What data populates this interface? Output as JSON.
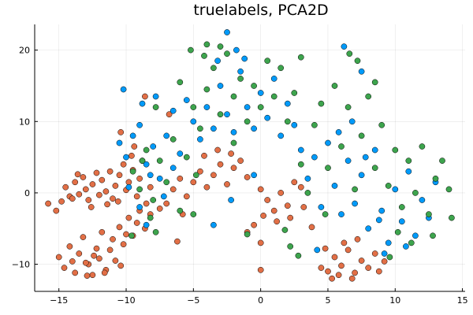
{
  "chart_data": {
    "type": "scatter",
    "title": "truelabels, PCA2D",
    "xlabel": "",
    "ylabel": "",
    "xlim": [
      -16.8,
      15.2
    ],
    "ylim": [
      -13.8,
      23.6
    ],
    "xticks": [
      -15,
      -10,
      -5,
      0,
      5,
      10,
      15
    ],
    "yticks": [
      -10,
      0,
      10,
      20
    ],
    "xtick_labels": [
      "−15",
      "−10",
      "−5",
      "0",
      "5",
      "10",
      "15"
    ],
    "ytick_labels": [
      "−10",
      "0",
      "10",
      "20"
    ],
    "grid": true,
    "legend": "none",
    "series": [
      {
        "color": "#e26f46",
        "points": [
          [
            -15.8,
            -1.5
          ],
          [
            -15.2,
            -2.5
          ],
          [
            -14.8,
            -1.2
          ],
          [
            -14.5,
            0.8
          ],
          [
            -14.2,
            -0.5
          ],
          [
            -13.8,
            1.5
          ],
          [
            -13.5,
            -0.2
          ],
          [
            -13.2,
            2.2
          ],
          [
            -13.0,
            0.5
          ],
          [
            -12.8,
            -1.0
          ],
          [
            -12.5,
            1.2
          ],
          [
            -12.2,
            2.8
          ],
          [
            -12.0,
            -0.3
          ],
          [
            -11.8,
            1.8
          ],
          [
            -11.5,
            0.2
          ],
          [
            -11.2,
            3.0
          ],
          [
            -11.0,
            -0.8
          ],
          [
            -10.8,
            1.0
          ],
          [
            -10.5,
            2.5
          ],
          [
            -10.2,
            4.0
          ],
          [
            -10.0,
            0.4
          ],
          [
            -9.8,
            1.5
          ],
          [
            -9.5,
            3.2
          ],
          [
            -9.2,
            -0.5
          ],
          [
            -9.0,
            2.0
          ],
          [
            -8.8,
            4.5
          ],
          [
            -8.5,
            -1.5
          ],
          [
            -8.2,
            0.8
          ],
          [
            -12.6,
            -2.0
          ],
          [
            -11.4,
            -1.6
          ],
          [
            -13.6,
            2.6
          ],
          [
            -14.0,
            -0.8
          ],
          [
            -10.6,
            -1.2
          ],
          [
            -9.6,
            5.2
          ],
          [
            -9.4,
            6.5
          ],
          [
            -10.4,
            8.5
          ],
          [
            -15.0,
            -9.0
          ],
          [
            -14.6,
            -10.5
          ],
          [
            -14.2,
            -7.5
          ],
          [
            -13.8,
            -11.2
          ],
          [
            -13.5,
            -8.5
          ],
          [
            -13.2,
            -6.2
          ],
          [
            -12.8,
            -10.0
          ],
          [
            -12.5,
            -11.5
          ],
          [
            -12.2,
            -7.8
          ],
          [
            -12.0,
            -9.2
          ],
          [
            -11.8,
            -5.5
          ],
          [
            -11.5,
            -10.8
          ],
          [
            -11.2,
            -8.0
          ],
          [
            -11.0,
            -6.5
          ],
          [
            -10.8,
            -9.5
          ],
          [
            -10.5,
            -4.8
          ],
          [
            -10.2,
            -7.2
          ],
          [
            -10.0,
            -5.8
          ],
          [
            -9.8,
            -3.5
          ],
          [
            -9.5,
            -6.0
          ],
          [
            -9.2,
            -4.2
          ],
          [
            -9.0,
            -2.5
          ],
          [
            -8.6,
            -5.0
          ],
          [
            -8.2,
            -3.0
          ],
          [
            -12.4,
            -8.8
          ],
          [
            -13.0,
            -9.8
          ],
          [
            -14.0,
            -9.6
          ],
          [
            -11.6,
            -11.2
          ],
          [
            -12.9,
            -11.6
          ],
          [
            -10.4,
            -10.2
          ],
          [
            -7.0,
            -1.5
          ],
          [
            -6.5,
            0.5
          ],
          [
            -6.0,
            2.0
          ],
          [
            -5.5,
            -0.5
          ],
          [
            -5.0,
            1.5
          ],
          [
            -4.5,
            3.0
          ],
          [
            -4.0,
            0.8
          ],
          [
            -3.5,
            2.5
          ],
          [
            -3.0,
            4.0
          ],
          [
            -2.5,
            1.2
          ],
          [
            -2.0,
            3.5
          ],
          [
            -5.8,
            -3.0
          ],
          [
            -7.5,
            -2.2
          ],
          [
            -6.2,
            -6.8
          ],
          [
            -4.2,
            5.2
          ],
          [
            -3.2,
            6.0
          ],
          [
            -2.2,
            5.5
          ],
          [
            -1.5,
            4.5
          ],
          [
            -1.0,
            2.2
          ],
          [
            0.0,
            0.5
          ],
          [
            0.5,
            -1.0
          ],
          [
            1.0,
            -2.5
          ],
          [
            1.5,
            0.0
          ],
          [
            2.0,
            -1.8
          ],
          [
            2.5,
            1.5
          ],
          [
            3.0,
            0.8
          ],
          [
            1.2,
            -4.0
          ],
          [
            0.2,
            -3.2
          ],
          [
            -0.5,
            -4.5
          ],
          [
            -1.0,
            -5.5
          ],
          [
            0.0,
            -7.0
          ],
          [
            2.2,
            -3.5
          ],
          [
            3.2,
            -2.0
          ],
          [
            3.8,
            -4.8
          ],
          [
            0.0,
            -10.8
          ],
          [
            4.5,
            -10.5
          ],
          [
            5.0,
            -11.0
          ],
          [
            5.5,
            -9.0
          ],
          [
            6.0,
            -10.2
          ],
          [
            6.5,
            -8.0
          ],
          [
            7.0,
            -11.2
          ],
          [
            7.5,
            -9.5
          ],
          [
            8.0,
            -10.5
          ],
          [
            8.5,
            -8.5
          ],
          [
            6.2,
            -7.0
          ],
          [
            5.8,
            -11.5
          ],
          [
            7.2,
            -6.5
          ],
          [
            6.8,
            -12.0
          ],
          [
            8.8,
            -11.0
          ],
          [
            9.2,
            -9.6
          ],
          [
            4.8,
            -7.8
          ],
          [
            5.3,
            -12.0
          ],
          [
            -8.6,
            13.5
          ],
          [
            -6.8,
            11.0
          ]
        ]
      },
      {
        "color": "#009af9",
        "points": [
          [
            -10.5,
            7.0
          ],
          [
            -10.0,
            5.0
          ],
          [
            -9.5,
            8.0
          ],
          [
            -9.0,
            9.5
          ],
          [
            -8.5,
            4.0
          ],
          [
            -8.0,
            6.5
          ],
          [
            -7.5,
            2.0
          ],
          [
            -7.0,
            8.0
          ],
          [
            -6.5,
            11.5
          ],
          [
            -6.0,
            5.5
          ],
          [
            -5.5,
            13.0
          ],
          [
            -5.0,
            10.0
          ],
          [
            -4.5,
            7.5
          ],
          [
            -4.0,
            12.0
          ],
          [
            -3.5,
            9.0
          ],
          [
            -3.0,
            15.0
          ],
          [
            -2.5,
            11.0
          ],
          [
            -2.0,
            8.5
          ],
          [
            -1.5,
            17.0
          ],
          [
            -1.0,
            12.0
          ],
          [
            -0.5,
            9.0
          ],
          [
            0.0,
            14.0
          ],
          [
            0.5,
            10.5
          ],
          [
            1.0,
            16.0
          ],
          [
            1.5,
            8.0
          ],
          [
            2.0,
            12.5
          ],
          [
            2.5,
            9.5
          ],
          [
            3.0,
            6.0
          ],
          [
            -2.5,
            22.5
          ],
          [
            -1.8,
            20.0
          ],
          [
            -3.2,
            18.5
          ],
          [
            -1.2,
            18.8
          ],
          [
            -9.0,
            -2.0
          ],
          [
            -8.5,
            -4.5
          ],
          [
            -9.8,
            0.8
          ],
          [
            -8.2,
            2.5
          ],
          [
            -7.2,
            -0.5
          ],
          [
            -6.5,
            3.5
          ],
          [
            -10.2,
            14.5
          ],
          [
            -8.8,
            12.5
          ],
          [
            -7.8,
            13.5
          ],
          [
            3.5,
            2.0
          ],
          [
            4.0,
            5.0
          ],
          [
            4.5,
            -2.0
          ],
          [
            5.0,
            7.0
          ],
          [
            5.5,
            1.0
          ],
          [
            6.0,
            -3.0
          ],
          [
            6.5,
            4.5
          ],
          [
            7.0,
            -1.5
          ],
          [
            7.5,
            2.5
          ],
          [
            8.0,
            -5.0
          ],
          [
            8.5,
            6.0
          ],
          [
            9.0,
            -2.5
          ],
          [
            9.5,
            -7.0
          ],
          [
            10.0,
            0.5
          ],
          [
            10.5,
            -4.0
          ],
          [
            11.0,
            3.0
          ],
          [
            11.5,
            -6.0
          ],
          [
            12.0,
            -1.0
          ],
          [
            12.5,
            -3.5
          ],
          [
            13.0,
            1.5
          ],
          [
            9.2,
            -8.5
          ],
          [
            10.8,
            -7.5
          ],
          [
            8.8,
            -3.8
          ],
          [
            7.8,
            5.0
          ],
          [
            6.8,
            10.0
          ],
          [
            5.8,
            8.5
          ],
          [
            6.2,
            20.5
          ],
          [
            7.5,
            17.0
          ],
          [
            4.2,
            -8.0
          ],
          [
            -0.5,
            2.5
          ],
          [
            -3.5,
            -4.5
          ],
          [
            -2.2,
            -1.0
          ]
        ]
      },
      {
        "color": "#3da44d",
        "points": [
          [
            -9.5,
            3.0
          ],
          [
            -9.0,
            0.5
          ],
          [
            -8.5,
            6.0
          ],
          [
            -8.0,
            -1.0
          ],
          [
            -7.5,
            4.5
          ],
          [
            -7.0,
            1.5
          ],
          [
            -6.5,
            7.5
          ],
          [
            -6.0,
            -2.5
          ],
          [
            -5.5,
            5.0
          ],
          [
            -5.0,
            12.0
          ],
          [
            -4.5,
            9.0
          ],
          [
            -4.0,
            14.5
          ],
          [
            -3.5,
            17.5
          ],
          [
            -3.0,
            11.0
          ],
          [
            -2.5,
            19.5
          ],
          [
            -2.0,
            13.5
          ],
          [
            -1.5,
            16.0
          ],
          [
            -1.0,
            10.0
          ],
          [
            -0.5,
            15.0
          ],
          [
            0.0,
            12.0
          ],
          [
            0.5,
            18.5
          ],
          [
            1.0,
            13.5
          ],
          [
            1.5,
            17.5
          ],
          [
            2.0,
            10.0
          ],
          [
            2.5,
            14.0
          ],
          [
            3.0,
            19.0
          ],
          [
            -5.2,
            20.0
          ],
          [
            -4.0,
            20.8
          ],
          [
            -3.0,
            20.5
          ],
          [
            -4.2,
            19.2
          ],
          [
            -6.0,
            15.5
          ],
          [
            -7.8,
            12.0
          ],
          [
            -8.8,
            4.5
          ],
          [
            -8.2,
            -3.5
          ],
          [
            -7.8,
            -5.5
          ],
          [
            -9.6,
            -6.0
          ],
          [
            -5.0,
            -3.0
          ],
          [
            -4.8,
            2.5
          ],
          [
            -2.0,
            7.0
          ],
          [
            3.0,
            4.0
          ],
          [
            3.5,
            0.0
          ],
          [
            4.0,
            9.5
          ],
          [
            4.5,
            12.5
          ],
          [
            5.0,
            3.5
          ],
          [
            5.5,
            15.0
          ],
          [
            6.0,
            6.5
          ],
          [
            6.5,
            12.0
          ],
          [
            7.0,
            0.5
          ],
          [
            7.5,
            8.0
          ],
          [
            8.0,
            13.5
          ],
          [
            8.5,
            3.5
          ],
          [
            9.0,
            9.5
          ],
          [
            9.5,
            1.0
          ],
          [
            10.0,
            6.0
          ],
          [
            10.5,
            -2.0
          ],
          [
            11.0,
            4.5
          ],
          [
            11.5,
            0.0
          ],
          [
            12.0,
            6.5
          ],
          [
            12.5,
            -3.0
          ],
          [
            13.0,
            2.0
          ],
          [
            13.5,
            4.5
          ],
          [
            14.0,
            0.5
          ],
          [
            14.2,
            -3.5
          ],
          [
            12.8,
            -6.0
          ],
          [
            11.2,
            -7.0
          ],
          [
            9.6,
            -9.0
          ],
          [
            10.2,
            -5.5
          ],
          [
            6.6,
            19.5
          ],
          [
            8.5,
            15.5
          ],
          [
            7.2,
            18.5
          ],
          [
            4.8,
            -3.0
          ],
          [
            2.8,
            -8.8
          ],
          [
            2.2,
            -7.5
          ],
          [
            1.8,
            -5.2
          ],
          [
            -1.0,
            -5.8
          ]
        ]
      }
    ]
  }
}
